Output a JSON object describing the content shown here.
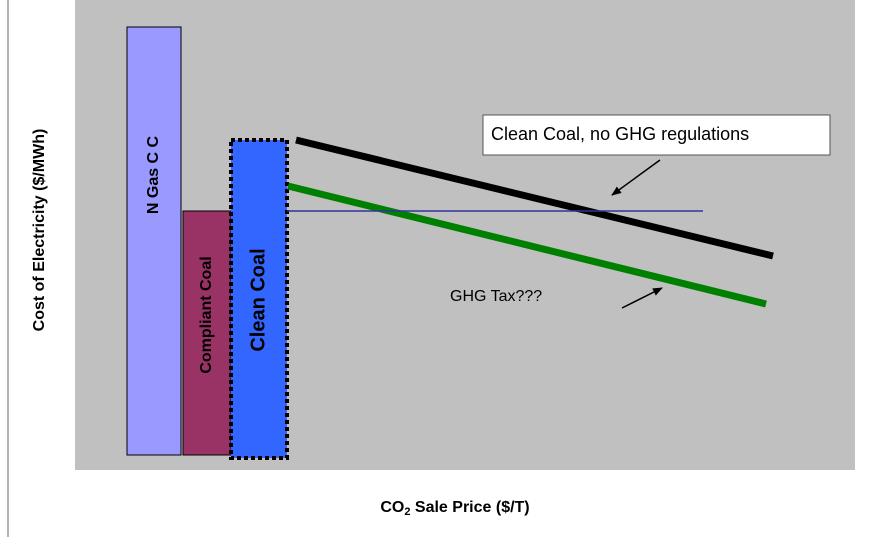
{
  "bars": [
    {
      "label": "N Gas C C"
    },
    {
      "label": "Compliant Coal"
    },
    {
      "label": "Clean Coal"
    }
  ],
  "annotations": [
    {
      "text": "Clean Coal, no GHG regulations"
    },
    {
      "text": "GHG Tax???"
    }
  ],
  "axes": {
    "y_label": "Cost of Electricity ($/MWh)",
    "x_label": {
      "prefix": "CO",
      "subscript": "2",
      "suffix": " Sale Price ($/T)"
    }
  }
}
